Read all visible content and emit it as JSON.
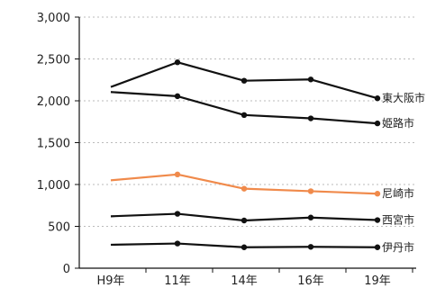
{
  "chart_data": {
    "type": "line",
    "categories": [
      "H9年",
      "11年",
      "14年",
      "16年",
      "19年"
    ],
    "ylim": [
      0,
      3000
    ],
    "yticks": [
      0,
      500,
      1000,
      1500,
      2000,
      2500,
      3000
    ],
    "ytick_labels": [
      "0",
      "500",
      "1,000",
      "1,500",
      "2,000",
      "2,500",
      "3,000"
    ],
    "grid": "horizontal-dotted",
    "legend": "inline-right",
    "series": [
      {
        "name": "東大阪市",
        "color": "#111111",
        "values": [
          2165,
          2460,
          2240,
          2255,
          2030
        ]
      },
      {
        "name": "姫路市",
        "color": "#111111",
        "values": [
          2105,
          2055,
          1830,
          1790,
          1730
        ]
      },
      {
        "name": "尼崎市",
        "color": "#f08a4b",
        "values": [
          1050,
          1120,
          950,
          920,
          890
        ]
      },
      {
        "name": "西宮市",
        "color": "#111111",
        "values": [
          620,
          650,
          570,
          605,
          575
        ]
      },
      {
        "name": "伊丹市",
        "color": "#111111",
        "values": [
          280,
          295,
          250,
          255,
          250
        ]
      }
    ]
  }
}
